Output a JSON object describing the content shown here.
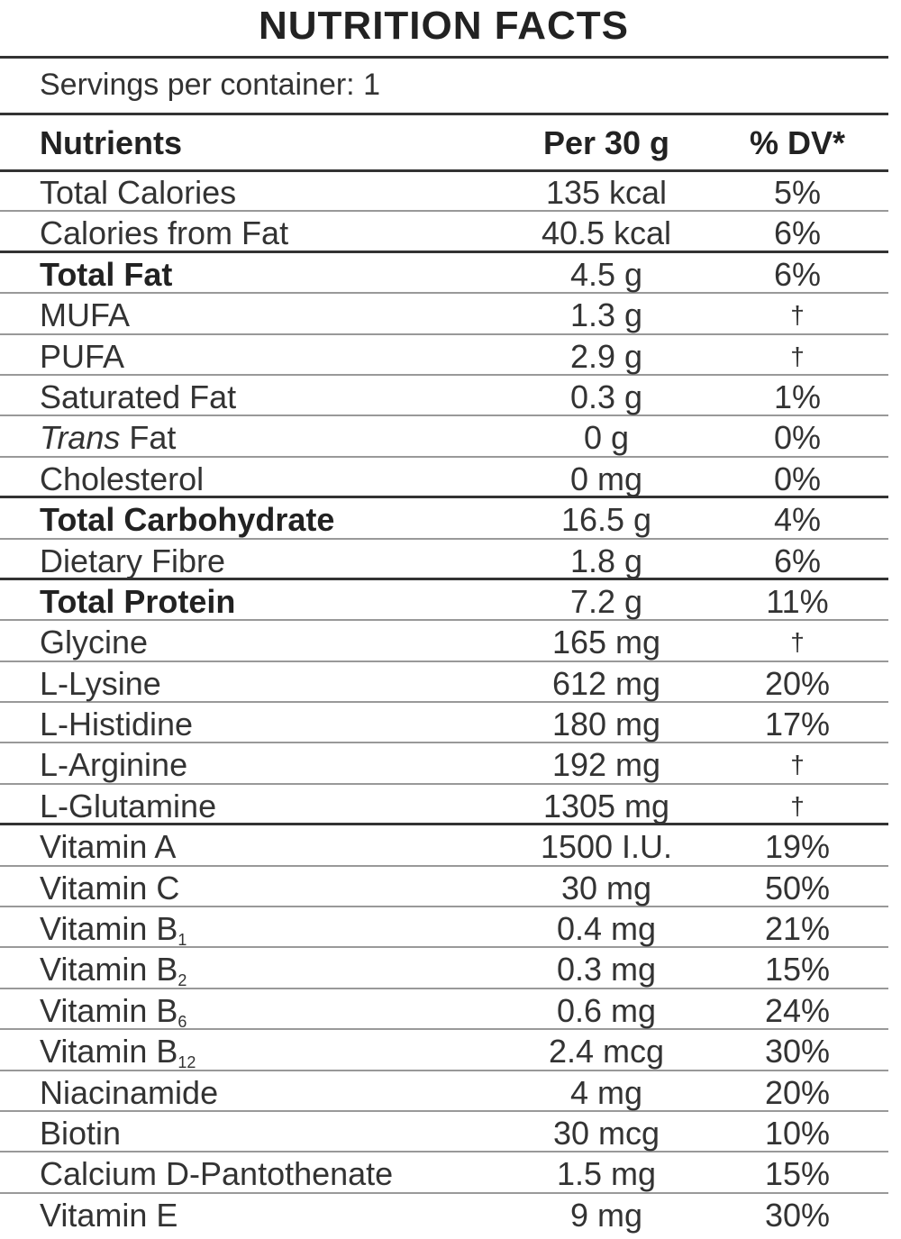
{
  "title": "NUTRITION FACTS",
  "servings": "Servings per container: 1",
  "header": {
    "nutrients": "Nutrients",
    "per": "Per 30 g",
    "dv": "% DV*"
  },
  "rows": [
    {
      "name": "Total Calories",
      "qty": "135 kcal",
      "dv": "5%"
    },
    {
      "name": "Calories from Fat",
      "qty": "40.5 kcal",
      "dv": "6%"
    },
    {
      "name": "Total Fat",
      "qty": "4.5 g",
      "dv": "6%"
    },
    {
      "name": "MUFA",
      "qty": "1.3 g",
      "dv": "†"
    },
    {
      "name": "PUFA",
      "qty": "2.9 g",
      "dv": "†"
    },
    {
      "name": "Saturated Fat",
      "qty": "0.3 g",
      "dv": "1%"
    },
    {
      "name_italic": "Trans",
      "name_rest": " Fat",
      "qty": "0 g",
      "dv": "0%"
    },
    {
      "name": "Cholesterol",
      "qty": "0 mg",
      "dv": "0%"
    },
    {
      "name": "Total Carbohydrate",
      "qty": "16.5 g",
      "dv": "4%"
    },
    {
      "name": "Dietary Fibre",
      "qty": "1.8 g",
      "dv": "6%"
    },
    {
      "name": "Total Protein",
      "qty": "7.2 g",
      "dv": "11%"
    },
    {
      "name": "Glycine",
      "qty": "165 mg",
      "dv": "†"
    },
    {
      "name": "L-Lysine",
      "qty": "612 mg",
      "dv": "20%"
    },
    {
      "name": "L-Histidine",
      "qty": "180 mg",
      "dv": "17%"
    },
    {
      "name": "L-Arginine",
      "qty": "192 mg",
      "dv": "†"
    },
    {
      "name": "L-Glutamine",
      "qty": "1305 mg",
      "dv": "†"
    },
    {
      "name": "Vitamin A",
      "qty": "1500 I.U.",
      "dv": "19%"
    },
    {
      "name": "Vitamin C",
      "qty": "30 mg",
      "dv": "50%"
    },
    {
      "name": "Vitamin B",
      "sub": "1",
      "qty": "0.4 mg",
      "dv": "21%"
    },
    {
      "name": "Vitamin B",
      "sub": "2",
      "qty": "0.3 mg",
      "dv": "15%"
    },
    {
      "name": "Vitamin B",
      "sub": "6",
      "qty": "0.6 mg",
      "dv": "24%"
    },
    {
      "name": "Vitamin B",
      "sub": "12",
      "qty": "2.4 mcg",
      "dv": "30%"
    },
    {
      "name": "Niacinamide",
      "qty": "4 mg",
      "dv": "20%"
    },
    {
      "name": "Biotin",
      "qty": "30 mcg",
      "dv": "10%"
    },
    {
      "name": "Calcium D-Pantothenate",
      "qty": "1.5 mg",
      "dv": "15%"
    },
    {
      "name": "Vitamin E",
      "qty": "9 mg",
      "dv": "30%"
    }
  ]
}
